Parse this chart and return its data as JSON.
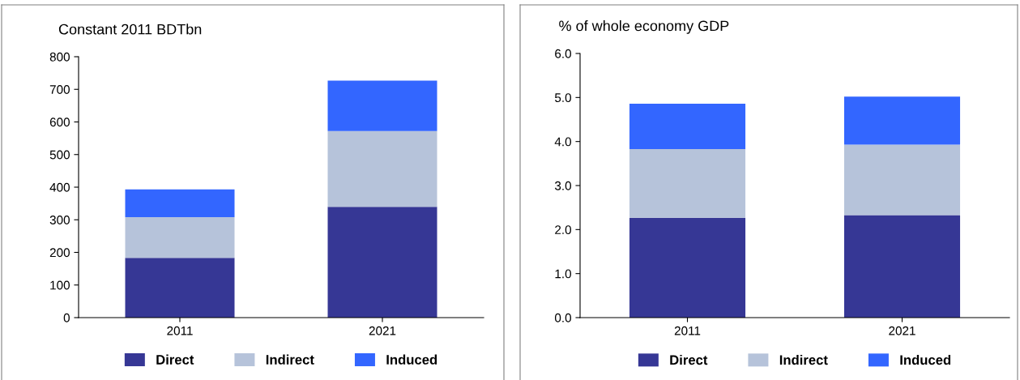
{
  "chart_data": [
    {
      "type": "bar",
      "stacked": true,
      "title": "Constant 2011 BDTbn",
      "categories": [
        "2011",
        "2021"
      ],
      "series": [
        {
          "name": "Direct",
          "color": "#363795",
          "values": [
            183,
            340
          ]
        },
        {
          "name": "Indirect",
          "color": "#b6c3da",
          "values": [
            125,
            232
          ]
        },
        {
          "name": "Induced",
          "color": "#3366ff",
          "values": [
            85,
            155
          ]
        }
      ],
      "ylim": [
        0,
        800
      ],
      "yticks": [
        0,
        100,
        200,
        300,
        400,
        500,
        600,
        700,
        800
      ],
      "grid": false,
      "legend": "bottom"
    },
    {
      "type": "bar",
      "stacked": true,
      "title": "% of whole economy GDP",
      "categories": [
        "2011",
        "2021"
      ],
      "series": [
        {
          "name": "Direct",
          "color": "#363795",
          "values": [
            2.27,
            2.33
          ]
        },
        {
          "name": "Indirect",
          "color": "#b6c3da",
          "values": [
            1.56,
            1.6
          ]
        },
        {
          "name": "Induced",
          "color": "#3366ff",
          "values": [
            1.03,
            1.09
          ]
        }
      ],
      "ylim": [
        0,
        6
      ],
      "yticks": [
        {
          "value": 0,
          "label": "0.0"
        },
        {
          "value": 1,
          "label": "1.0"
        },
        {
          "value": 2,
          "label": "2.0"
        },
        {
          "value": 3,
          "label": "3.0"
        },
        {
          "value": 4,
          "label": "4.0"
        },
        {
          "value": 5,
          "label": "5.0"
        },
        {
          "value": 6,
          "label": "6.0"
        }
      ],
      "grid": false,
      "legend": "bottom"
    }
  ]
}
